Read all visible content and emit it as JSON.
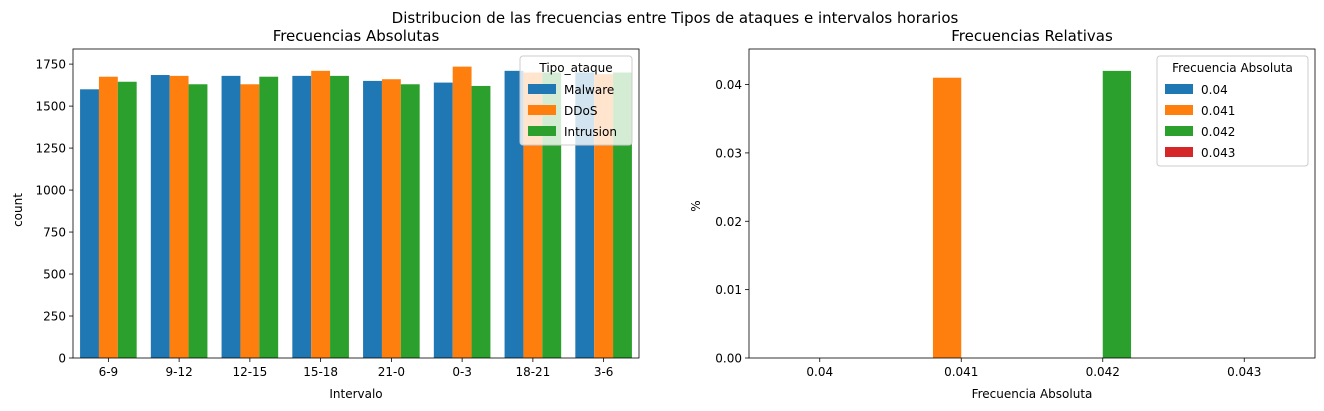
{
  "suptitle": "Distribucion de las frecuencias entre Tipos de ataques e intervalos horarios",
  "chart_data": [
    {
      "type": "bar",
      "title": "Frecuencias Absolutas",
      "xlabel": "Intervalo",
      "ylabel": "count",
      "categories": [
        "6-9",
        "9-12",
        "12-15",
        "15-18",
        "21-0",
        "0-3",
        "18-21",
        "3-6"
      ],
      "ylim": [
        0,
        1840
      ],
      "yticks": [
        0,
        250,
        500,
        750,
        1000,
        1250,
        1500,
        1750
      ],
      "legend": {
        "title": "Tipo_ataque",
        "placement": "upper right"
      },
      "series": [
        {
          "name": "Malware",
          "color": "#1f77b4",
          "values": [
            1600,
            1685,
            1680,
            1680,
            1650,
            1640,
            1710,
            1700
          ]
        },
        {
          "name": "DDoS",
          "color": "#ff7f0e",
          "values": [
            1675,
            1680,
            1630,
            1710,
            1660,
            1735,
            1700,
            1690
          ]
        },
        {
          "name": "Intrusion",
          "color": "#2ca02c",
          "values": [
            1645,
            1630,
            1675,
            1680,
            1630,
            1620,
            1700,
            1700
          ]
        }
      ]
    },
    {
      "type": "bar",
      "title": "Frecuencias Relativas",
      "xlabel": "Frecuencia Absoluta",
      "ylabel": "%",
      "categories": [
        "0.04",
        "0.041",
        "0.042",
        "0.043"
      ],
      "ylim": [
        0,
        0.0452
      ],
      "yticks": [
        "0.00",
        "0.01",
        "0.02",
        "0.03",
        "0.04"
      ],
      "legend": {
        "title": "Frecuencia Absoluta",
        "placement": "upper right"
      },
      "series": [
        {
          "name": "0.04",
          "color": "#1f77b4",
          "values": [
            0,
            0,
            0,
            0
          ]
        },
        {
          "name": "0.041",
          "color": "#ff7f0e",
          "values": [
            0,
            0.041,
            0,
            0
          ]
        },
        {
          "name": "0.042",
          "color": "#2ca02c",
          "values": [
            0,
            0,
            0.042,
            0
          ]
        },
        {
          "name": "0.043",
          "color": "#d62728",
          "values": [
            0,
            0,
            0,
            0
          ]
        }
      ]
    }
  ]
}
